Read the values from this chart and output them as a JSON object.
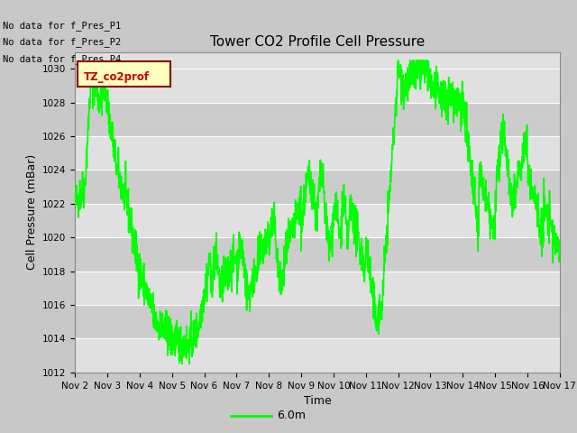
{
  "title": "Tower CO2 Profile Cell Pressure",
  "xlabel": "Time",
  "ylabel": "Cell Pressure (mBar)",
  "ylim": [
    1012,
    1031
  ],
  "yticks": [
    1012,
    1014,
    1016,
    1018,
    1020,
    1022,
    1024,
    1026,
    1028,
    1030
  ],
  "line_color": "#00ff00",
  "line_width": 1.2,
  "bg_color": "#c8c8c8",
  "plot_bg_light": "#e0e0e0",
  "plot_bg_dark": "#cccccc",
  "no_data_labels": [
    "No data for f_Pres_P1",
    "No data for f_Pres_P2",
    "No data for f_Pres_P4"
  ],
  "legend_label": "TZ_co2prof",
  "legend_box_color": "#ffffc0",
  "legend_box_edge": "#880000",
  "legend_text_color": "#cc0000",
  "bottom_legend_label": "6.0m",
  "x_tick_labels": [
    "Nov 2",
    "Nov 3",
    "Nov 4",
    "Nov 5",
    "Nov 6",
    "Nov 7",
    "Nov 8",
    "Nov 9",
    "Nov 10",
    "Nov 11",
    "Nov 12",
    "Nov 13",
    "Nov 14",
    "Nov 15",
    "Nov 16",
    "Nov 17"
  ],
  "n_points": 2000
}
